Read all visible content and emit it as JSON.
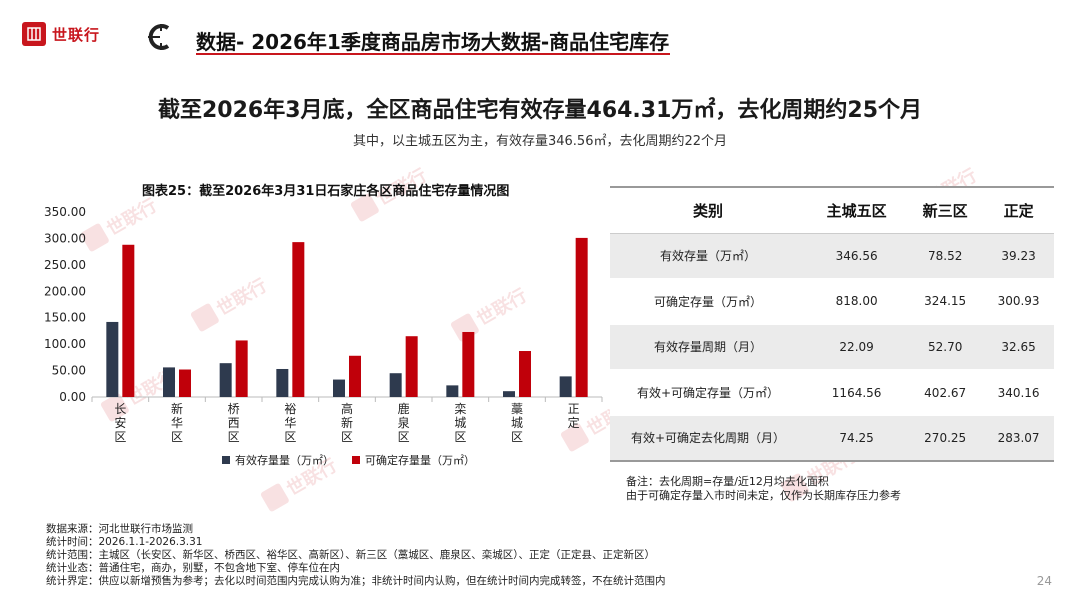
{
  "brand": {
    "name": "世联行",
    "color": "#c8161d"
  },
  "header": {
    "title": "数据- 2026年1季度商品房市场大数据-商品住宅库存"
  },
  "headline": "截至2026年3月底，全区商品住宅有效存量464.31万㎡，去化周期约25个月",
  "subhead": "其中，以主城五区为主，有效存量346.56㎡，去化周期约22个月",
  "chart_data": {
    "type": "bar",
    "title": "图表25：截至2026年3月31日石家庄各区商品住宅存量情况图",
    "categories": [
      "长安区",
      "新华区",
      "桥西区",
      "裕华区",
      "高新区",
      "鹿泉区",
      "栾城区",
      "藁城区",
      "正定"
    ],
    "series": [
      {
        "name": "有效存量量（万㎡）",
        "color": "#2e3a4e",
        "values": [
          142,
          56,
          64,
          53,
          33,
          45,
          22,
          11,
          39
        ]
      },
      {
        "name": "可确定存量量（万㎡）",
        "color": "#c0000a",
        "values": [
          288,
          52,
          107,
          293,
          78,
          115,
          123,
          87,
          301
        ]
      }
    ],
    "ylim": [
      0,
      350
    ],
    "yticks": [
      "0.00",
      "50.00",
      "100.00",
      "150.00",
      "200.00",
      "250.00",
      "300.00",
      "350.00"
    ],
    "xlabel": "",
    "ylabel": "",
    "legend": "bottom",
    "grid": false
  },
  "table": {
    "headers": [
      "类别",
      "主城五区",
      "新三区",
      "正定"
    ],
    "rows": [
      [
        "有效存量（万㎡）",
        "346.56",
        "78.52",
        "39.23"
      ],
      [
        "可确定存量（万㎡）",
        "818.00",
        "324.15",
        "300.93"
      ],
      [
        "有效存量周期（月）",
        "22.09",
        "52.70",
        "32.65"
      ],
      [
        "有效+可确定存量（万㎡）",
        "1164.56",
        "402.67",
        "340.16"
      ],
      [
        "有效+可确定去化周期（月）",
        "74.25",
        "270.25",
        "283.07"
      ]
    ]
  },
  "notes": [
    "备注：去化周期=存量/近12月均去化面积",
    "由于可确定存量入市时间未定，仅作为长期库存压力参考"
  ],
  "footnotes": [
    "数据来源：河北世联行市场监测",
    "统计时间：2026.1.1-2026.3.31",
    "统计范围：主城区（长安区、新华区、桥西区、裕华区、高新区）、新三区（藁城区、鹿泉区、栾城区）、正定（正定县、正定新区）",
    "统计业态：普通住宅，商办，别墅，不包含地下室、停车位在内",
    "统计界定：供应以新增预售为参考；去化以时间范围内完成认购为准；非统计时间内认购，但在统计时间内完成转签，不在统计范围内"
  ],
  "page_number": "24"
}
